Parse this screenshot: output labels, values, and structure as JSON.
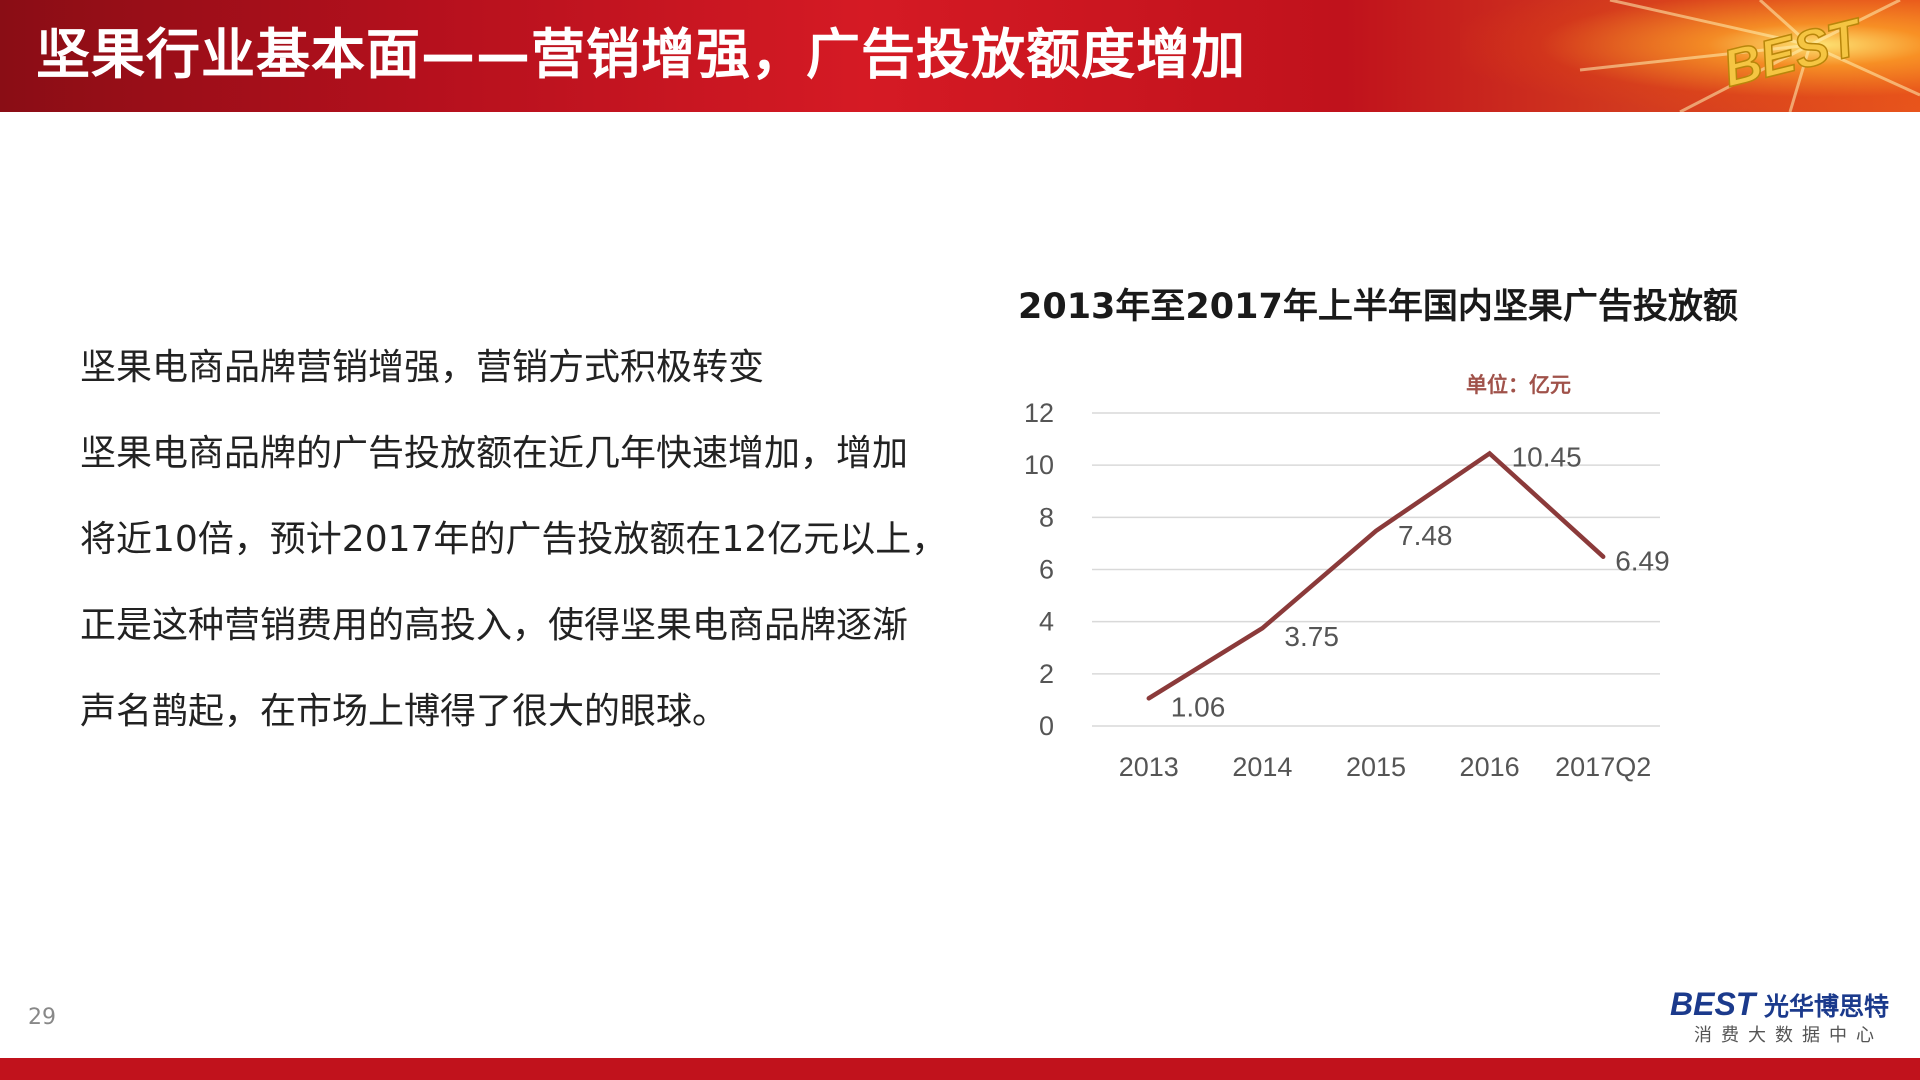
{
  "header": {
    "title": "坚果行业基本面——营销增强，广告投放额度增加",
    "logo_text": "BEST"
  },
  "body": {
    "lines": [
      "坚果电商品牌营销增强，营销方式积极转变",
      "坚果电商品牌的广告投放额在近几年快速增加，增加",
      "将近10倍，预计2017年的广告投放额在12亿元以上，",
      "正是这种营销费用的高投入，使得坚果电商品牌逐渐",
      "声名鹊起，在市场上博得了很大的眼球。"
    ]
  },
  "chart_title": "2013年至2017年上半年国内坚果广告投放额",
  "chart_data": {
    "type": "line",
    "title": "2013年至2017年上半年国内坚果广告投放额",
    "unit_label": "单位：亿元",
    "categories": [
      "2013",
      "2014",
      "2015",
      "2016",
      "2017Q2"
    ],
    "series": [
      {
        "values": [
          1.06,
          3.75,
          7.48,
          10.45,
          6.49
        ],
        "color": "#8b3a3a"
      }
    ],
    "data_labels": [
      "1.06",
      "3.75",
      "7.48",
      "10.45",
      "6.49"
    ],
    "ylim": [
      0,
      12
    ],
    "yticks": [
      0,
      2,
      4,
      6,
      8,
      10,
      12
    ],
    "ytick_labels": [
      "0",
      "2",
      "4",
      "6",
      "8",
      "10",
      "12"
    ],
    "grid": true
  },
  "footer": {
    "page_number": "29",
    "logo_best": "BEST",
    "logo_cn": "光华博思特",
    "logo_sub": "消费大数据中心"
  },
  "colors": {
    "header_red": "#c0121c",
    "footer_red": "#c1121c",
    "line": "#8b3a3a",
    "unit_label": "#a0524a",
    "logo_blue": "#1b3a8c"
  }
}
